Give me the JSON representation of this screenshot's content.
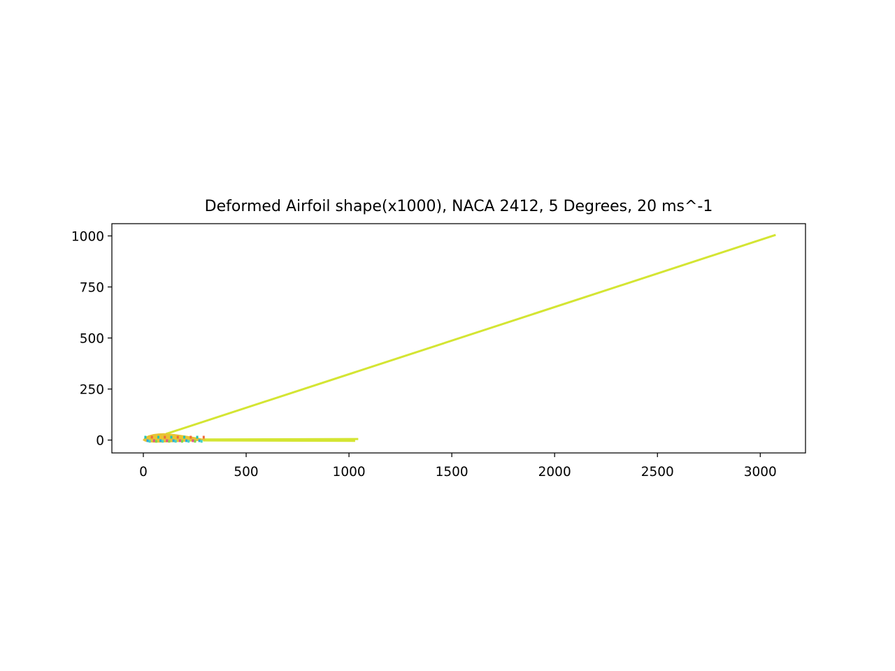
{
  "chart_data": {
    "type": "line",
    "title": "Deformed Airfoil shape(x1000), NACA 2412, 5 Degrees, 20 ms^-1",
    "xlabel": "",
    "ylabel": "",
    "xlim": [
      -153,
      3220
    ],
    "ylim": [
      -63,
      1060
    ],
    "xticks": [
      0,
      500,
      1000,
      1500,
      2000,
      2500,
      3000
    ],
    "yticks": [
      0,
      250,
      500,
      750,
      1000
    ],
    "grid": false,
    "legend": "none",
    "colors": {
      "main_line": "#d4e533",
      "airfoil_fill": "#e8c434",
      "inner_marks": [
        "#22c3b5",
        "#2aa8e0",
        "#43d6c4",
        "#ef6b3a",
        "#e34e8c",
        "#7fd94a"
      ]
    },
    "series": [
      {
        "color": "#d4e533",
        "x": [
          110,
          3075
        ],
        "y": [
          30,
          1005
        ]
      },
      {
        "color": "#d4e533",
        "x": [
          290,
          1045
        ],
        "y": [
          3,
          5
        ]
      },
      {
        "color": "#d4e533",
        "x": [
          290,
          1030
        ],
        "y": [
          -2,
          -4
        ]
      },
      {
        "color": "#e8c434",
        "x": [
          0,
          10,
          25,
          50,
          75,
          100,
          150,
          200,
          250,
          300,
          250,
          200,
          150,
          100,
          75,
          50,
          25,
          10,
          0
        ],
        "y": [
          0,
          13,
          20,
          27,
          30,
          31,
          27,
          20,
          12,
          2,
          -4,
          -6,
          -8,
          -9,
          -10,
          -10,
          -8,
          -5,
          0
        ]
      }
    ]
  }
}
